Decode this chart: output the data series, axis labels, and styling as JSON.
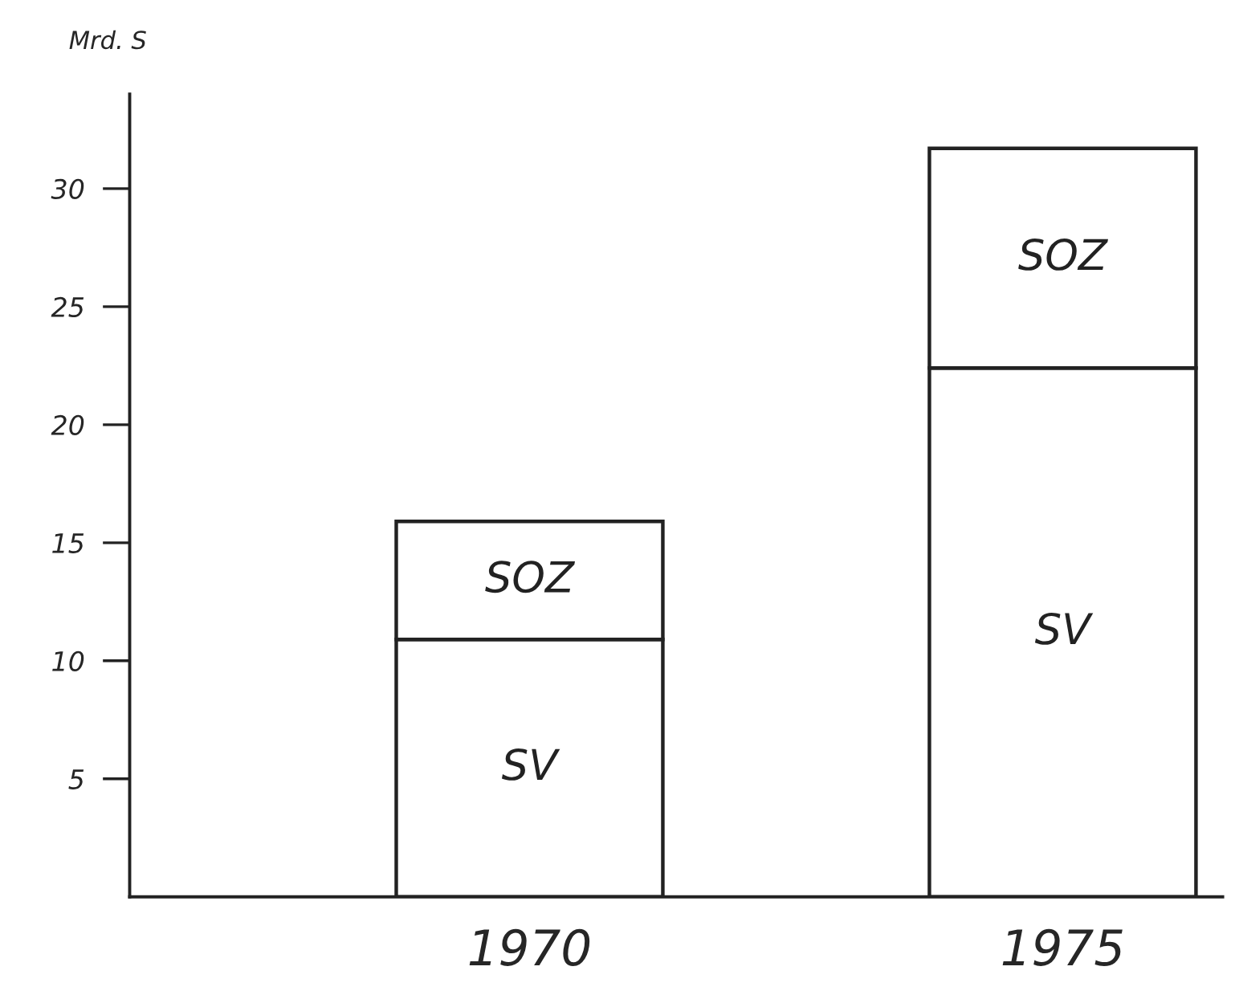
{
  "chart_data": {
    "type": "bar",
    "stacked": true,
    "ylabel": "Mrd. S",
    "categories": [
      "1970",
      "1975"
    ],
    "series": [
      {
        "name": "SV",
        "color": "#ffffff",
        "values": [
          10.9,
          22.4
        ]
      },
      {
        "name": "SOZ",
        "color": "#ffffff",
        "values": [
          5.0,
          9.3
        ]
      }
    ],
    "ylim": [
      0,
      34
    ],
    "yticks": [
      5,
      10,
      15,
      20,
      25,
      30
    ],
    "grid": false,
    "legend": false
  }
}
